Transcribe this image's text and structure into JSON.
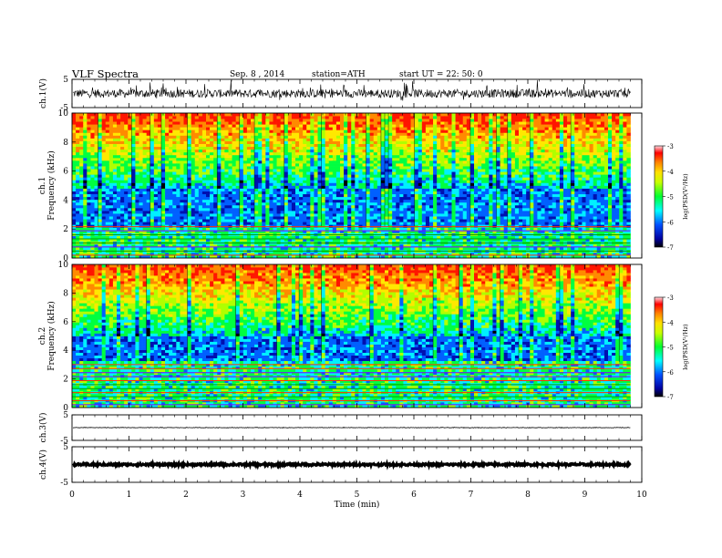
{
  "header": {
    "title": "VLF  Spectra",
    "date": "Sep. 8  , 2014",
    "station": "station=ATH",
    "start": "start  UT  =   22: 50: 0"
  },
  "chart_data": [
    {
      "type": "line",
      "panel": "ch1-waveform",
      "ylabel": "ch.1(V)",
      "ylim": [
        -5,
        5
      ],
      "yticks": [
        5,
        -5
      ],
      "xlim": [
        0,
        10
      ],
      "series_extent_min": 9.8,
      "baseline": 0,
      "amplitude": 1.5
    },
    {
      "type": "heatmap",
      "panel": "ch1-spectrogram",
      "ylabel_line1": "ch.1",
      "ylabel_line2": "Frequency  (kHz)",
      "ylim": [
        0,
        10
      ],
      "yticks": [
        0,
        2,
        4,
        6,
        8,
        10
      ],
      "xlim": [
        0,
        10
      ],
      "series_extent_min": 9.8,
      "colorbar": {
        "label": "log(PSD(V²/Hz)",
        "ticks": [
          -3,
          -4,
          -5,
          -6,
          -7
        ]
      },
      "dark_band_khz": [
        2.2,
        4.8
      ]
    },
    {
      "type": "heatmap",
      "panel": "ch2-spectrogram",
      "ylabel_line1": "ch.2",
      "ylabel_line2": "Frequency  (kHz)",
      "ylim": [
        0,
        10
      ],
      "yticks": [
        0,
        2,
        4,
        6,
        8,
        10
      ],
      "xlim": [
        0,
        10
      ],
      "series_extent_min": 9.8,
      "colorbar": {
        "label": "log(PSD(V²/Hz)",
        "ticks": [
          -3,
          -4,
          -5,
          -6,
          -7
        ]
      },
      "dark_band_khz": [
        3.2,
        5.0
      ]
    },
    {
      "type": "line",
      "panel": "ch3-waveform",
      "ylabel": "ch.3(V)",
      "ylim": [
        -5,
        5
      ],
      "yticks": [
        5,
        -5
      ],
      "xlim": [
        0,
        10
      ],
      "series_extent_min": 9.8,
      "baseline": 0,
      "amplitude": 0.1
    },
    {
      "type": "line",
      "panel": "ch4-waveform",
      "ylabel": "ch.4(V)",
      "ylim": [
        -5,
        5
      ],
      "yticks": [
        5,
        -5
      ],
      "xlim": [
        0,
        10
      ],
      "series_extent_min": 9.8,
      "baseline": 0,
      "amplitude": 0.3
    }
  ],
  "xaxis": {
    "label": "Time  (min)",
    "ticks": [
      "0",
      "1",
      "2",
      "3",
      "4",
      "5",
      "6",
      "7",
      "8",
      "9",
      "10"
    ]
  }
}
